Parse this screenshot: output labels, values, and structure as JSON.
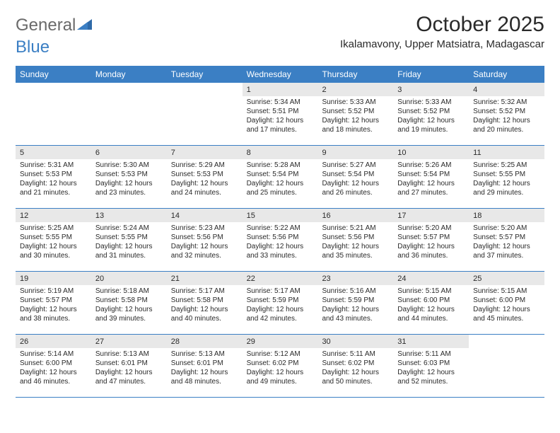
{
  "logo": {
    "text1": "General",
    "text2": "Blue"
  },
  "title": "October 2025",
  "subtitle": "Ikalamavony, Upper Matsiatra, Madagascar",
  "colors": {
    "brand_blue": "#3b7fc4",
    "header_text": "#6a6a6a",
    "day_num_bg": "#e8e8e8",
    "text": "#2a2a2a",
    "white": "#ffffff"
  },
  "weekdays": [
    "Sunday",
    "Monday",
    "Tuesday",
    "Wednesday",
    "Thursday",
    "Friday",
    "Saturday"
  ],
  "weeks": [
    [
      {
        "empty": true
      },
      {
        "empty": true
      },
      {
        "empty": true
      },
      {
        "num": "1",
        "sunrise": "Sunrise: 5:34 AM",
        "sunset": "Sunset: 5:51 PM",
        "daylight": "Daylight: 12 hours and 17 minutes."
      },
      {
        "num": "2",
        "sunrise": "Sunrise: 5:33 AM",
        "sunset": "Sunset: 5:52 PM",
        "daylight": "Daylight: 12 hours and 18 minutes."
      },
      {
        "num": "3",
        "sunrise": "Sunrise: 5:33 AM",
        "sunset": "Sunset: 5:52 PM",
        "daylight": "Daylight: 12 hours and 19 minutes."
      },
      {
        "num": "4",
        "sunrise": "Sunrise: 5:32 AM",
        "sunset": "Sunset: 5:52 PM",
        "daylight": "Daylight: 12 hours and 20 minutes."
      }
    ],
    [
      {
        "num": "5",
        "sunrise": "Sunrise: 5:31 AM",
        "sunset": "Sunset: 5:53 PM",
        "daylight": "Daylight: 12 hours and 21 minutes."
      },
      {
        "num": "6",
        "sunrise": "Sunrise: 5:30 AM",
        "sunset": "Sunset: 5:53 PM",
        "daylight": "Daylight: 12 hours and 23 minutes."
      },
      {
        "num": "7",
        "sunrise": "Sunrise: 5:29 AM",
        "sunset": "Sunset: 5:53 PM",
        "daylight": "Daylight: 12 hours and 24 minutes."
      },
      {
        "num": "8",
        "sunrise": "Sunrise: 5:28 AM",
        "sunset": "Sunset: 5:54 PM",
        "daylight": "Daylight: 12 hours and 25 minutes."
      },
      {
        "num": "9",
        "sunrise": "Sunrise: 5:27 AM",
        "sunset": "Sunset: 5:54 PM",
        "daylight": "Daylight: 12 hours and 26 minutes."
      },
      {
        "num": "10",
        "sunrise": "Sunrise: 5:26 AM",
        "sunset": "Sunset: 5:54 PM",
        "daylight": "Daylight: 12 hours and 27 minutes."
      },
      {
        "num": "11",
        "sunrise": "Sunrise: 5:25 AM",
        "sunset": "Sunset: 5:55 PM",
        "daylight": "Daylight: 12 hours and 29 minutes."
      }
    ],
    [
      {
        "num": "12",
        "sunrise": "Sunrise: 5:25 AM",
        "sunset": "Sunset: 5:55 PM",
        "daylight": "Daylight: 12 hours and 30 minutes."
      },
      {
        "num": "13",
        "sunrise": "Sunrise: 5:24 AM",
        "sunset": "Sunset: 5:55 PM",
        "daylight": "Daylight: 12 hours and 31 minutes."
      },
      {
        "num": "14",
        "sunrise": "Sunrise: 5:23 AM",
        "sunset": "Sunset: 5:56 PM",
        "daylight": "Daylight: 12 hours and 32 minutes."
      },
      {
        "num": "15",
        "sunrise": "Sunrise: 5:22 AM",
        "sunset": "Sunset: 5:56 PM",
        "daylight": "Daylight: 12 hours and 33 minutes."
      },
      {
        "num": "16",
        "sunrise": "Sunrise: 5:21 AM",
        "sunset": "Sunset: 5:56 PM",
        "daylight": "Daylight: 12 hours and 35 minutes."
      },
      {
        "num": "17",
        "sunrise": "Sunrise: 5:20 AM",
        "sunset": "Sunset: 5:57 PM",
        "daylight": "Daylight: 12 hours and 36 minutes."
      },
      {
        "num": "18",
        "sunrise": "Sunrise: 5:20 AM",
        "sunset": "Sunset: 5:57 PM",
        "daylight": "Daylight: 12 hours and 37 minutes."
      }
    ],
    [
      {
        "num": "19",
        "sunrise": "Sunrise: 5:19 AM",
        "sunset": "Sunset: 5:57 PM",
        "daylight": "Daylight: 12 hours and 38 minutes."
      },
      {
        "num": "20",
        "sunrise": "Sunrise: 5:18 AM",
        "sunset": "Sunset: 5:58 PM",
        "daylight": "Daylight: 12 hours and 39 minutes."
      },
      {
        "num": "21",
        "sunrise": "Sunrise: 5:17 AM",
        "sunset": "Sunset: 5:58 PM",
        "daylight": "Daylight: 12 hours and 40 minutes."
      },
      {
        "num": "22",
        "sunrise": "Sunrise: 5:17 AM",
        "sunset": "Sunset: 5:59 PM",
        "daylight": "Daylight: 12 hours and 42 minutes."
      },
      {
        "num": "23",
        "sunrise": "Sunrise: 5:16 AM",
        "sunset": "Sunset: 5:59 PM",
        "daylight": "Daylight: 12 hours and 43 minutes."
      },
      {
        "num": "24",
        "sunrise": "Sunrise: 5:15 AM",
        "sunset": "Sunset: 6:00 PM",
        "daylight": "Daylight: 12 hours and 44 minutes."
      },
      {
        "num": "25",
        "sunrise": "Sunrise: 5:15 AM",
        "sunset": "Sunset: 6:00 PM",
        "daylight": "Daylight: 12 hours and 45 minutes."
      }
    ],
    [
      {
        "num": "26",
        "sunrise": "Sunrise: 5:14 AM",
        "sunset": "Sunset: 6:00 PM",
        "daylight": "Daylight: 12 hours and 46 minutes."
      },
      {
        "num": "27",
        "sunrise": "Sunrise: 5:13 AM",
        "sunset": "Sunset: 6:01 PM",
        "daylight": "Daylight: 12 hours and 47 minutes."
      },
      {
        "num": "28",
        "sunrise": "Sunrise: 5:13 AM",
        "sunset": "Sunset: 6:01 PM",
        "daylight": "Daylight: 12 hours and 48 minutes."
      },
      {
        "num": "29",
        "sunrise": "Sunrise: 5:12 AM",
        "sunset": "Sunset: 6:02 PM",
        "daylight": "Daylight: 12 hours and 49 minutes."
      },
      {
        "num": "30",
        "sunrise": "Sunrise: 5:11 AM",
        "sunset": "Sunset: 6:02 PM",
        "daylight": "Daylight: 12 hours and 50 minutes."
      },
      {
        "num": "31",
        "sunrise": "Sunrise: 5:11 AM",
        "sunset": "Sunset: 6:03 PM",
        "daylight": "Daylight: 12 hours and 52 minutes."
      },
      {
        "empty": true
      }
    ]
  ]
}
